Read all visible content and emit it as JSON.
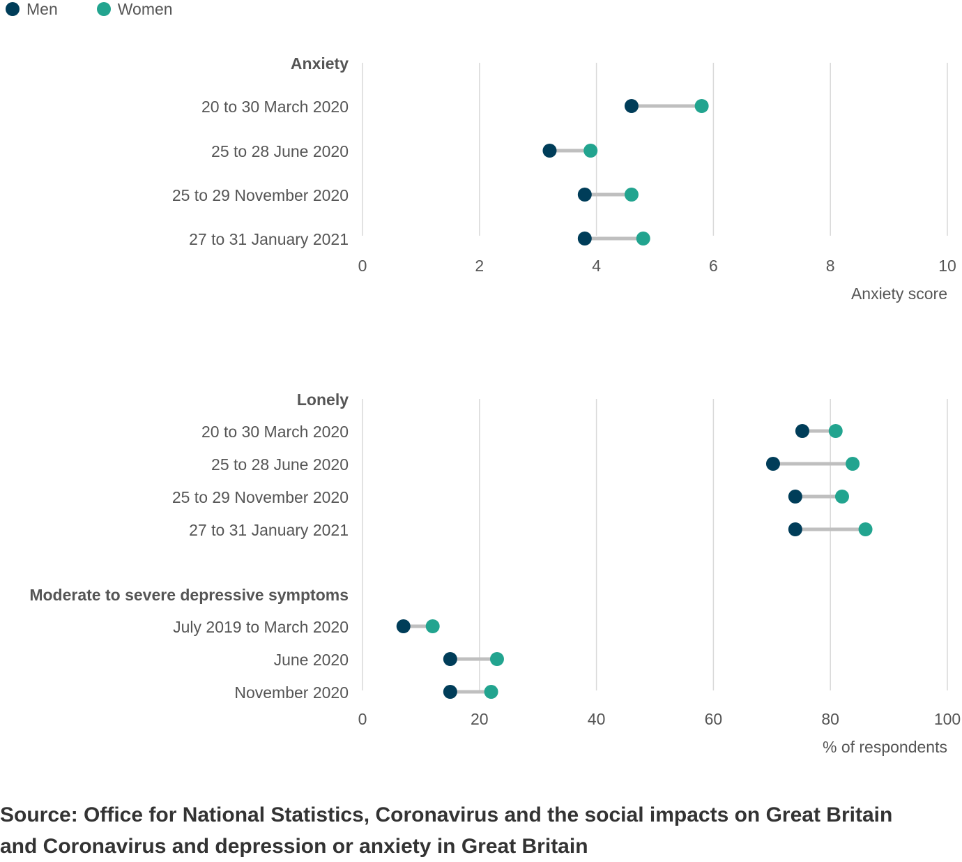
{
  "legend": [
    {
      "name": "Men",
      "color": "#003d59"
    },
    {
      "name": "Women",
      "color": "#22a48f"
    }
  ],
  "colors": {
    "men": "#003d59",
    "women": "#22a48f",
    "connector": "#bfbfbf",
    "grid": "#d9d9d9",
    "text": "#555555"
  },
  "chart_data": [
    {
      "type": "dumbbell",
      "xlabel": "Anxiety score",
      "xlim": [
        0,
        10
      ],
      "xticks": [
        "0",
        "2",
        "4",
        "6",
        "8",
        "10"
      ],
      "grid": true,
      "groups": [
        {
          "title": "Anxiety",
          "rows": [
            {
              "label": "20 to 30 March 2020",
              "men": 4.6,
              "women": 5.8
            },
            {
              "label": "25 to 28 June 2020",
              "men": 3.2,
              "women": 3.9
            },
            {
              "label": "25 to 29 November 2020",
              "men": 3.8,
              "women": 4.6
            },
            {
              "label": "27 to 31 January 2021",
              "men": 3.8,
              "women": 4.8
            }
          ]
        }
      ]
    },
    {
      "type": "dumbbell",
      "xlabel": "% of respondents",
      "xlim": [
        0,
        100
      ],
      "xticks": [
        "0",
        "20",
        "40",
        "60",
        "80",
        "100"
      ],
      "grid": true,
      "groups": [
        {
          "title": "Lonely",
          "rows": [
            {
              "label": "20 to 30 March 2020",
              "men": 75.2,
              "women": 80.9
            },
            {
              "label": "25 to 28 June 2020",
              "men": 70.2,
              "women": 83.8
            },
            {
              "label": "25 to 29 November 2020",
              "men": 74.0,
              "women": 82.0
            },
            {
              "label": "27 to 31 January 2021",
              "men": 74.0,
              "women": 86.0
            }
          ]
        },
        {
          "title": "Moderate to severe depressive symptoms",
          "rows": [
            {
              "label": "July 2019 to March 2020",
              "men": 7.0,
              "women": 12.0
            },
            {
              "label": "June 2020",
              "men": 15.0,
              "women": 23.0
            },
            {
              "label": "November 2020",
              "men": 15.0,
              "women": 22.0
            }
          ]
        }
      ]
    }
  ],
  "source": "Source: Office for National Statistics, Coronavirus and the social impacts on Great Britain and Coronavirus and depression or anxiety in Great Britain"
}
